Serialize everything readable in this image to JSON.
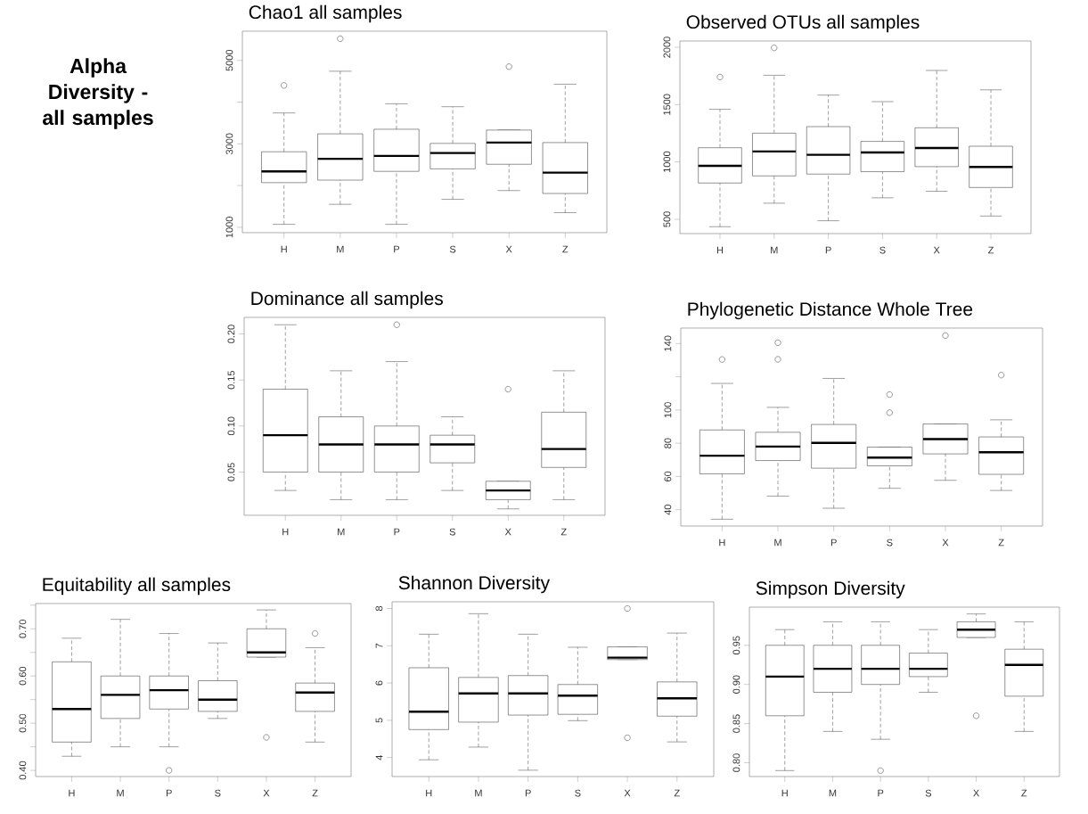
{
  "chart_data": [
    {
      "type": "other",
      "title": "Alpha Diversity - all samples"
    },
    {
      "type": "box",
      "title": "Chao1 all samples",
      "categories": [
        "H",
        "M",
        "P",
        "S",
        "X",
        "Z"
      ],
      "ylim": [
        870,
        5700
      ],
      "yticks": [
        1000,
        {
          "value": 2000,
          "label": null
        },
        3000,
        {
          "value": 4000,
          "label": null
        },
        5000
      ],
      "boxes": [
        {
          "low": 1070,
          "q1": 2070,
          "median": 2340,
          "q3": 2810,
          "high": 3740,
          "outliers": [
            4400
          ]
        },
        {
          "low": 1550,
          "q1": 2130,
          "median": 2640,
          "q3": 3240,
          "high": 4740,
          "outliers": [
            5520
          ]
        },
        {
          "low": 1070,
          "q1": 2340,
          "median": 2710,
          "q3": 3350,
          "high": 3960
        },
        {
          "low": 1670,
          "q1": 2400,
          "median": 2780,
          "q3": 3010,
          "high": 3890
        },
        {
          "low": 1880,
          "q1": 2510,
          "median": 3030,
          "q3": 3330,
          "high": 3330,
          "outliers": [
            4850
          ]
        },
        {
          "low": 1350,
          "q1": 1810,
          "median": 2310,
          "q3": 3030,
          "high": 4430
        }
      ]
    },
    {
      "type": "box",
      "title": "Observed OTUs all samples",
      "categories": [
        "H",
        "M",
        "P",
        "S",
        "X",
        "Z"
      ],
      "ylim": [
        375,
        2055
      ],
      "yticks": [
        500,
        1000,
        1500,
        2000
      ],
      "boxes": [
        {
          "low": 435,
          "q1": 816,
          "median": 966,
          "q3": 1124,
          "high": 1459,
          "outliers": [
            1741
          ]
        },
        {
          "low": 640,
          "q1": 878,
          "median": 1091,
          "q3": 1251,
          "high": 1756,
          "outliers": [
            1995
          ]
        },
        {
          "low": 487,
          "q1": 894,
          "median": 1062,
          "q3": 1308,
          "high": 1583
        },
        {
          "low": 687,
          "q1": 915,
          "median": 1083,
          "q3": 1179,
          "high": 1526
        },
        {
          "low": 744,
          "q1": 959,
          "median": 1122,
          "q3": 1298,
          "high": 1798
        },
        {
          "low": 528,
          "q1": 777,
          "median": 956,
          "q3": 1137,
          "high": 1629
        }
      ]
    },
    {
      "type": "box",
      "title": "Dominance all samples",
      "categories": [
        "H",
        "M",
        "P",
        "S",
        "X",
        "Z"
      ],
      "ylim": [
        0.003,
        0.218
      ],
      "yticks": [
        0.05,
        {
          "value": 0.1,
          "label": "0.10"
        },
        0.15,
        {
          "value": 0.2,
          "label": "0.20"
        }
      ],
      "boxes": [
        {
          "low": 0.03,
          "q1": 0.05,
          "median": 0.09,
          "q3": 0.14,
          "high": 0.21
        },
        {
          "low": 0.02,
          "q1": 0.05,
          "median": 0.08,
          "q3": 0.11,
          "high": 0.16
        },
        {
          "low": 0.02,
          "q1": 0.05,
          "median": 0.08,
          "q3": 0.1,
          "high": 0.17,
          "outliers": [
            0.21
          ]
        },
        {
          "low": 0.03,
          "q1": 0.06,
          "median": 0.08,
          "q3": 0.09,
          "high": 0.11
        },
        {
          "low": 0.01,
          "q1": 0.02,
          "median": 0.03,
          "q3": 0.04,
          "high": 0.04,
          "outliers": [
            0.14
          ]
        },
        {
          "low": 0.02,
          "q1": 0.055,
          "median": 0.075,
          "q3": 0.115,
          "high": 0.16
        }
      ]
    },
    {
      "type": "box",
      "title": "Phylogenetic Distance Whole Tree",
      "categories": [
        "H",
        "M",
        "P",
        "S",
        "X",
        "Z"
      ],
      "ylim": [
        30.2,
        149.3
      ],
      "yticks": [
        40,
        60,
        80,
        100,
        {
          "value": 120,
          "label": null
        },
        140
      ],
      "boxes": [
        {
          "low": 34.3,
          "q1": 61.6,
          "median": 72.5,
          "q3": 88,
          "high": 116,
          "outliers": [
            130.4
          ]
        },
        {
          "low": 48.2,
          "q1": 69.6,
          "median": 78,
          "q3": 86.6,
          "high": 101.6,
          "outliers": [
            140.5,
            130.5
          ]
        },
        {
          "low": 40.9,
          "q1": 65,
          "median": 80.2,
          "q3": 91.3,
          "high": 119
        },
        {
          "low": 52.9,
          "q1": 66.4,
          "median": 71.4,
          "q3": 77.7,
          "high": 77.7,
          "outliers": [
            98.4,
            109.3
          ]
        },
        {
          "low": 57.7,
          "q1": 73.6,
          "median": 82.5,
          "q3": 91.6,
          "high": 91.6,
          "outliers": [
            144.8
          ]
        },
        {
          "low": 51.6,
          "q1": 61.3,
          "median": 74.6,
          "q3": 83.8,
          "high": 94.1,
          "outliers": [
            121
          ]
        }
      ]
    },
    {
      "type": "box",
      "title": "Equitability all samples",
      "categories": [
        "H",
        "M",
        "P",
        "S",
        "X",
        "Z"
      ],
      "ylim": [
        0.387,
        0.7535
      ],
      "yticks": [
        {
          "value": 0.4,
          "label": "0.40"
        },
        {
          "value": 0.45,
          "label": null
        },
        {
          "value": 0.5,
          "label": "0.50"
        },
        {
          "value": 0.55,
          "label": null
        },
        {
          "value": 0.6,
          "label": "0.60"
        },
        {
          "value": 0.65,
          "label": null
        },
        {
          "value": 0.7,
          "label": "0.70"
        },
        {
          "value": 0.75,
          "label": null
        }
      ],
      "boxes": [
        {
          "low": 0.43,
          "q1": 0.46,
          "median": 0.53,
          "q3": 0.63,
          "high": 0.68
        },
        {
          "low": 0.45,
          "q1": 0.51,
          "median": 0.56,
          "q3": 0.6,
          "high": 0.72
        },
        {
          "low": 0.45,
          "q1": 0.53,
          "median": 0.57,
          "q3": 0.6,
          "high": 0.69,
          "outliers": [
            0.4
          ]
        },
        {
          "low": 0.51,
          "q1": 0.525,
          "median": 0.55,
          "q3": 0.59,
          "high": 0.67
        },
        {
          "low": 0.64,
          "q1": 0.64,
          "median": 0.65,
          "q3": 0.7,
          "high": 0.74,
          "outliers": [
            0.47
          ]
        },
        {
          "low": 0.46,
          "q1": 0.525,
          "median": 0.565,
          "q3": 0.585,
          "high": 0.66,
          "outliers": [
            0.69
          ]
        }
      ]
    },
    {
      "type": "box",
      "title": "Shannon Diversity",
      "categories": [
        "H",
        "M",
        "P",
        "S",
        "X",
        "Z"
      ],
      "ylim": [
        3.49,
        8.18
      ],
      "yticks": [
        4,
        5,
        6,
        7,
        8
      ],
      "boxes": [
        {
          "low": 3.94,
          "q1": 4.75,
          "median": 5.23,
          "q3": 6.41,
          "high": 7.31
        },
        {
          "low": 4.28,
          "q1": 4.95,
          "median": 5.72,
          "q3": 6.15,
          "high": 7.86
        },
        {
          "low": 3.66,
          "q1": 5.14,
          "median": 5.72,
          "q3": 6.2,
          "high": 7.31
        },
        {
          "low": 4.99,
          "q1": 5.16,
          "median": 5.66,
          "q3": 5.96,
          "high": 6.96
        },
        {
          "low": 6.63,
          "q1": 6.63,
          "median": 6.68,
          "q3": 6.97,
          "high": 6.97,
          "outliers": [
            8.0,
            4.53
          ]
        },
        {
          "low": 4.42,
          "q1": 5.11,
          "median": 5.59,
          "q3": 6.03,
          "high": 7.34
        }
      ]
    },
    {
      "type": "box",
      "title": "Simpson Diversity",
      "categories": [
        "H",
        "M",
        "P",
        "S",
        "X",
        "Z"
      ],
      "ylim": [
        0.7824,
        0.9987
      ],
      "yticks": [
        {
          "value": 0.8,
          "label": "0.80"
        },
        0.85,
        {
          "value": 0.9,
          "label": "0.90"
        },
        0.95
      ],
      "boxes": [
        {
          "low": 0.79,
          "q1": 0.86,
          "median": 0.91,
          "q3": 0.95,
          "high": 0.97
        },
        {
          "low": 0.84,
          "q1": 0.89,
          "median": 0.92,
          "q3": 0.95,
          "high": 0.98
        },
        {
          "low": 0.83,
          "q1": 0.9,
          "median": 0.92,
          "q3": 0.95,
          "high": 0.98,
          "outliers": [
            0.79
          ]
        },
        {
          "low": 0.89,
          "q1": 0.91,
          "median": 0.92,
          "q3": 0.94,
          "high": 0.97
        },
        {
          "low": 0.96,
          "q1": 0.96,
          "median": 0.97,
          "q3": 0.98,
          "high": 0.99,
          "outliers": [
            0.86
          ]
        },
        {
          "low": 0.84,
          "q1": 0.885,
          "median": 0.925,
          "q3": 0.945,
          "high": 0.98
        }
      ]
    }
  ]
}
